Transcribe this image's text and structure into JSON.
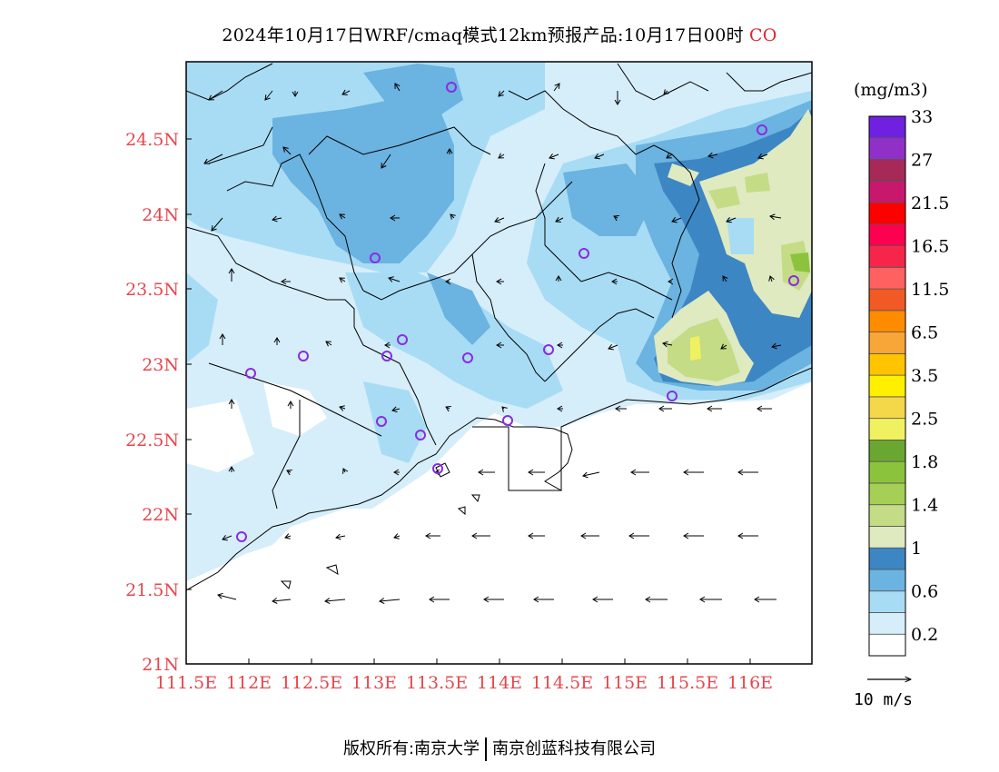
{
  "title": {
    "main": "2024年10月17日WRF/cmaq模式12km预报产品:10月17日00时",
    "species": "CO"
  },
  "axes": {
    "lat_labels": [
      "24.5N",
      "24N",
      "23.5N",
      "23N",
      "22.5N",
      "22N",
      "21.5N",
      "21N"
    ],
    "lon_labels": [
      "111.5E",
      "112E",
      "112.5E",
      "113E",
      "113.5E",
      "114E",
      "114.5E",
      "115E",
      "115.5E",
      "116E"
    ],
    "label_color": "#e8464b"
  },
  "legend": {
    "unit": "(mg/m3)",
    "colors": [
      "#ffffff",
      "#d6eefa",
      "#a8dcf4",
      "#6bb3e0",
      "#3d86c4",
      "#dfeac0",
      "#c4dc86",
      "#a6cf56",
      "#8cc33c",
      "#6aa730",
      "#f0f160",
      "#f4d84a",
      "#fff000",
      "#ffc400",
      "#f8a637",
      "#ff8c00",
      "#f15a25",
      "#ff6060",
      "#f5264a",
      "#ff0050",
      "#ff0000",
      "#c8186e",
      "#a52a58",
      "#9030c8",
      "#7020e0"
    ],
    "labels": [
      {
        "index": 1,
        "text": "0.2"
      },
      {
        "index": 3,
        "text": "0.6"
      },
      {
        "index": 5,
        "text": "1"
      },
      {
        "index": 7,
        "text": "1.4"
      },
      {
        "index": 9,
        "text": "1.8"
      },
      {
        "index": 11,
        "text": "2.5"
      },
      {
        "index": 13,
        "text": "3.5"
      },
      {
        "index": 15,
        "text": "6.5"
      },
      {
        "index": 17,
        "text": "11.5"
      },
      {
        "index": 19,
        "text": "16.5"
      },
      {
        "index": 21,
        "text": "21.5"
      },
      {
        "index": 23,
        "text": "27"
      },
      {
        "index": 25,
        "text": "33"
      }
    ]
  },
  "wind_reference": {
    "label": "10 m/s"
  },
  "footer": {
    "left": "版权所有:南京大学",
    "right": "南京创蓝科技有限公司"
  },
  "colors": {
    "station_marker": "#8a2be2",
    "frame": "#000000"
  }
}
